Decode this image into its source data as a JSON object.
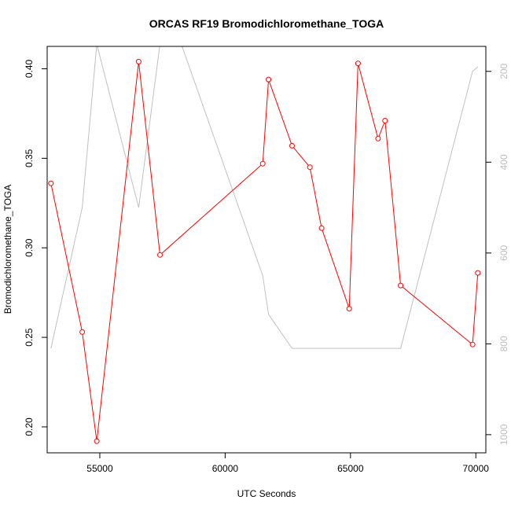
{
  "chart_data": {
    "type": "line",
    "title": "ORCAS RF19 Bromodichloromethane_TOGA",
    "xlabel": "UTC Seconds",
    "ylabel": "Bromodichloromethane_TOGA",
    "xlim": [
      52900,
      70400
    ],
    "ylim": [
      0.1855,
      0.4125
    ],
    "y2lim": [
      1040,
      145
    ],
    "x_ticks": [
      55000,
      60000,
      65000,
      70000
    ],
    "y_ticks": [
      0.2,
      0.25,
      0.3,
      0.35,
      0.4
    ],
    "y2_ticks": [
      200,
      400,
      600,
      800,
      1000
    ],
    "x_tick_labels": [
      "55000",
      "60000",
      "65000",
      "70000"
    ],
    "y_tick_labels": [
      "0.20",
      "0.25",
      "0.30",
      "0.35",
      "0.40"
    ],
    "y2_tick_labels": [
      "200",
      "400",
      "600",
      "800",
      "1000"
    ],
    "grid": false,
    "series": [
      {
        "color": "#ff0000",
        "marker": "open-circle",
        "x": [
          53050,
          54300,
          54880,
          56550,
          57400,
          61500,
          61730,
          62670,
          63380,
          63850,
          64950,
          65300,
          66100,
          66380,
          67000,
          69870,
          70080
        ],
        "y": [
          0.336,
          0.253,
          0.192,
          0.404,
          0.296,
          0.347,
          0.394,
          0.357,
          0.345,
          0.311,
          0.266,
          0.403,
          0.361,
          0.371,
          0.279,
          0.246,
          0.286
        ]
      },
      {
        "color": "#c0c0c0",
        "axis": "right",
        "x": [
          53050,
          54300,
          54880,
          56550,
          57400,
          58250,
          61500,
          61730,
          62670,
          67000,
          69870,
          70080
        ],
        "y": [
          810,
          500,
          140,
          500,
          140,
          140,
          650,
          735,
          810,
          810,
          200,
          190
        ]
      }
    ]
  }
}
